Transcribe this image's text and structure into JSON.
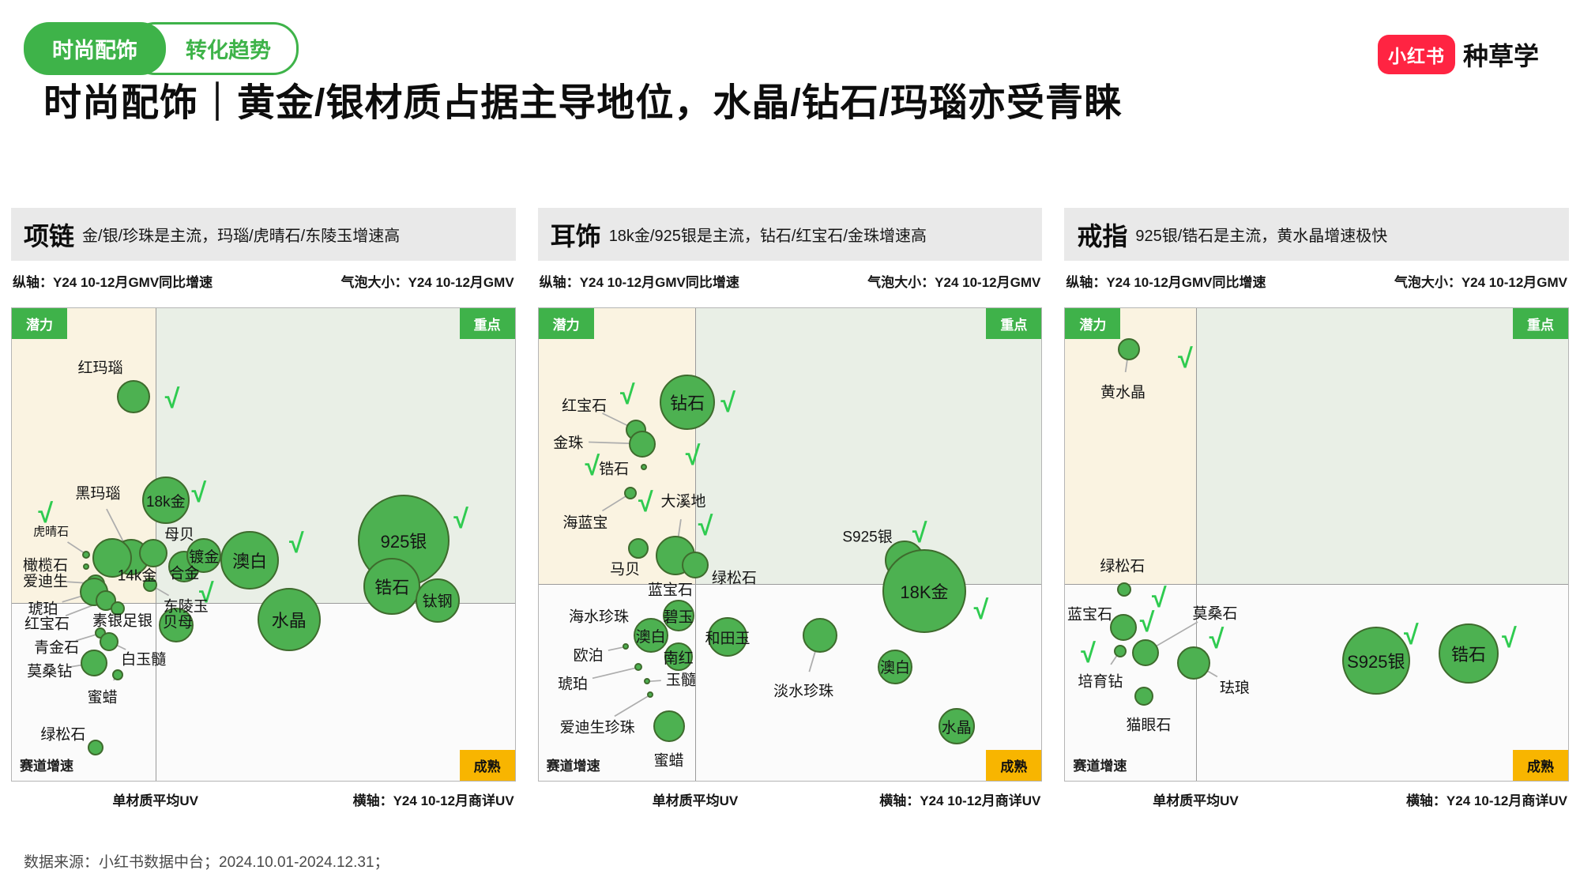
{
  "header": {
    "tag_primary": "时尚配饰",
    "tag_secondary": "转化趋势",
    "logo_badge": "小红书",
    "logo_text": "种草学",
    "title": "时尚配饰｜黄金/银材质占据主导地位，水晶/钻石/玛瑙亦受青睐"
  },
  "footer": {
    "source": "数据来源：小红书数据中台；2024.10.01-2024.12.31；"
  },
  "shared": {
    "y_axis_note": "纵轴：Y24 10-12月GMV同比增速",
    "bubble_note": "气泡大小：Y24 10-12月GMV",
    "x_axis_left": "单材质平均UV",
    "x_axis_right": "横轴：Y24 10-12月商详UV",
    "quadrant_labels": {
      "top_left": "潜力",
      "top_right": "重点",
      "bottom_right": "成熟",
      "bottom_left": "赛道增速"
    },
    "check_glyph": "√",
    "colors": {
      "bubble_fill": "#4DB151",
      "bubble_stroke": "#3E6B2D",
      "check_green": "#2FCB50",
      "quadrant_beige": "#FAF3E1",
      "quadrant_green": "#E9EFE6",
      "badge_green": "#3FB24A",
      "badge_yellow": "#F8B500",
      "brand_red": "#FF2442",
      "pill_green": "#3EB349"
    }
  },
  "chart_data": [
    {
      "type": "bubble",
      "title": "项链",
      "subtitle": "金/银/珍珠是主流，玛瑙/虎晴石/东陵玉增速高",
      "ylabel": "Y24 10-12月GMV同比增速",
      "xlabel": "Y24 10-12月商详UV",
      "size_label": "Y24 10-12月GMV",
      "divider_x": 28.6,
      "divider_y": 62.3,
      "bubbles": [
        {
          "name": "红玛瑙",
          "x": 24.2,
          "y": 18.7,
          "r": 21,
          "label": {
            "x": 17.6,
            "y": 12.4
          },
          "leader": false
        },
        {
          "name": "18k金",
          "x": 30.6,
          "y": 40.7,
          "r": 30,
          "inside": true
        },
        {
          "name": "黑玛瑙",
          "x": 23.7,
          "y": 52.6,
          "r": 23,
          "label": {
            "x": 17.1,
            "y": 38.9
          },
          "leader": true
        },
        {
          "name": "虎晴石",
          "x": 14.8,
          "y": 52.1,
          "r": 5,
          "label": {
            "x": 7.8,
            "y": 47.2
          },
          "leader": true,
          "small": true
        },
        {
          "name": "母贝",
          "x": 28.1,
          "y": 51.8,
          "r": 18,
          "label": {
            "x": 33.3,
            "y": 47.6
          },
          "leader": false
        },
        {
          "name": "14k金",
          "x": 20.0,
          "y": 52.8,
          "r": 25,
          "label": {
            "x": 24.9,
            "y": 56.3
          },
          "leader": false
        },
        {
          "name": "合金",
          "x": 34.3,
          "y": 54.6,
          "r": 20,
          "label": {
            "x": 34.3,
            "y": 55.8
          },
          "leader": false
        },
        {
          "name": "镀金",
          "x": 38.2,
          "y": 52.4,
          "r": 22,
          "inside": true
        },
        {
          "name": "澳白",
          "x": 47.3,
          "y": 53.4,
          "r": 37,
          "inside": true
        },
        {
          "name": "橄榄石",
          "x": 14.8,
          "y": 54.6,
          "r": 4,
          "label": {
            "x": 6.7,
            "y": 54.1
          },
          "leader": false
        },
        {
          "name": "爱迪生",
          "x": 16.7,
          "y": 58.3,
          "r": 12,
          "label": {
            "x": 6.7,
            "y": 57.6
          },
          "leader": true
        },
        {
          "name": "琥珀",
          "x": 16.4,
          "y": 60.1,
          "r": 18,
          "label": {
            "x": 6.2,
            "y": 63.4
          },
          "leader": true
        },
        {
          "name": "红宝石",
          "x": 18.7,
          "y": 61.8,
          "r": 13,
          "label": {
            "x": 7.0,
            "y": 66.6
          },
          "leader": true
        },
        {
          "name": "素银足银",
          "x": 21.1,
          "y": 63.5,
          "r": 9,
          "label": {
            "x": 22.0,
            "y": 65.9
          },
          "leader": true
        },
        {
          "name": "东陵玉",
          "x": 27.5,
          "y": 58.5,
          "r": 9,
          "label": {
            "x": 34.6,
            "y": 62.9
          },
          "leader": true
        },
        {
          "name": "贝母",
          "x": 32.7,
          "y": 67.1,
          "r": 22,
          "label": {
            "x": 33.0,
            "y": 66.3
          },
          "leader": false
        },
        {
          "name": "青金石",
          "x": 17.6,
          "y": 68.8,
          "r": 7,
          "label": {
            "x": 8.9,
            "y": 71.6
          },
          "leader": true
        },
        {
          "name": "白玉髓",
          "x": 19.3,
          "y": 70.5,
          "r": 12,
          "label": {
            "x": 26.2,
            "y": 74.1
          },
          "leader": true
        },
        {
          "name": "莫桑钻",
          "x": 16.4,
          "y": 75.1,
          "r": 17,
          "label": {
            "x": 7.5,
            "y": 76.6
          },
          "leader": true
        },
        {
          "name": "蜜蜡",
          "x": 21.0,
          "y": 77.6,
          "r": 7,
          "label": {
            "x": 18.0,
            "y": 82.1
          },
          "leader": true
        },
        {
          "name": "绿松石",
          "x": 16.7,
          "y": 93.0,
          "r": 10,
          "label": {
            "x": 10.2,
            "y": 90.0
          },
          "leader": false
        },
        {
          "name": "925银",
          "x": 77.9,
          "y": 49.1,
          "r": 58,
          "inside": true
        },
        {
          "name": "锆石",
          "x": 75.6,
          "y": 58.9,
          "r": 36,
          "inside": true
        },
        {
          "name": "钛钢",
          "x": 84.6,
          "y": 61.8,
          "r": 28,
          "inside": true
        },
        {
          "name": "水晶",
          "x": 55.1,
          "y": 65.9,
          "r": 40,
          "inside": true
        }
      ],
      "checks": [
        {
          "x": 31.9,
          "y": 19.2
        },
        {
          "x": 37.2,
          "y": 39.1
        },
        {
          "x": 6.7,
          "y": 43.4
        },
        {
          "x": 56.6,
          "y": 49.9
        },
        {
          "x": 89.3,
          "y": 44.6
        },
        {
          "x": 38.7,
          "y": 60.4
        }
      ]
    },
    {
      "type": "bubble",
      "title": "耳饰",
      "subtitle": "18k金/925银是主流，钻石/红宝石/金珠增速高",
      "ylabel": "Y24 10-12月GMV同比增速",
      "xlabel": "Y24 10-12月商详UV",
      "size_label": "Y24 10-12月GMV",
      "divider_x": 31.2,
      "divider_y": 58.3,
      "bubbles": [
        {
          "name": "红宝石",
          "x": 19.3,
          "y": 25.7,
          "r": 13,
          "label": {
            "x": 9.1,
            "y": 20.4
          },
          "leader": true
        },
        {
          "name": "钻石",
          "x": 29.6,
          "y": 19.9,
          "r": 35,
          "inside": true
        },
        {
          "name": "金珠",
          "x": 20.7,
          "y": 28.7,
          "r": 17,
          "label": {
            "x": 5.9,
            "y": 28.2
          },
          "leader": true
        },
        {
          "name": "锆石",
          "x": 21.0,
          "y": 33.6,
          "r": 4,
          "label": {
            "x": 15.0,
            "y": 33.7
          },
          "leader": false
        },
        {
          "name": "大溪地",
          "x": 27.2,
          "y": 52.4,
          "r": 25,
          "label": {
            "x": 28.8,
            "y": 40.7
          },
          "leader": true
        },
        {
          "name": "海蓝宝",
          "x": 18.2,
          "y": 39.2,
          "r": 8,
          "label": {
            "x": 9.3,
            "y": 45.1
          },
          "leader": true
        },
        {
          "name": "马贝",
          "x": 19.8,
          "y": 50.9,
          "r": 13,
          "label": {
            "x": 17.2,
            "y": 55.1
          },
          "leader": false
        },
        {
          "name": "蓝宝石",
          "x": 31.2,
          "y": 54.3,
          "r": 17,
          "label": {
            "x": 26.2,
            "y": 59.3
          },
          "leader": false
        },
        {
          "name": "绿松石",
          "x": 0,
          "y": 0,
          "r": 0,
          "label": {
            "x": 38.9,
            "y": 56.8
          },
          "leader": false
        },
        {
          "name": "S925银",
          "x": 72.7,
          "y": 53.3,
          "r": 25,
          "label": {
            "x": 65.4,
            "y": 48.2
          },
          "leader": false
        },
        {
          "name": "18K金",
          "x": 76.7,
          "y": 59.9,
          "r": 53,
          "inside": true
        },
        {
          "name": "海水珍珠",
          "x": 0,
          "y": 0,
          "r": 0,
          "label": {
            "x": 12.0,
            "y": 65.1
          },
          "leader": false
        },
        {
          "name": "碧玉",
          "x": 27.8,
          "y": 65.1,
          "r": 20,
          "inside": true
        },
        {
          "name": "澳白",
          "x": 22.3,
          "y": 69.3,
          "r": 22,
          "inside": true
        },
        {
          "name": "和田玉",
          "x": 37.6,
          "y": 69.6,
          "r": 25,
          "inside": true
        },
        {
          "name": "欧泊",
          "x": 17.4,
          "y": 71.6,
          "r": 4,
          "label": {
            "x": 9.9,
            "y": 73.3
          },
          "leader": true
        },
        {
          "name": "南红",
          "x": 27.8,
          "y": 73.8,
          "r": 18,
          "inside": true
        },
        {
          "name": "琥珀",
          "x": 19.8,
          "y": 76.0,
          "r": 5,
          "label": {
            "x": 6.8,
            "y": 79.3
          },
          "leader": true
        },
        {
          "name": "玉髓",
          "x": 21.5,
          "y": 79.0,
          "r": 4,
          "label": {
            "x": 28.3,
            "y": 78.5
          },
          "leader": true
        },
        {
          "name": "爱迪生珍珠",
          "x": 22.2,
          "y": 81.8,
          "r": 4,
          "label": {
            "x": 11.7,
            "y": 88.5
          },
          "leader": true
        },
        {
          "name": "蜜蜡",
          "x": 25.9,
          "y": 88.5,
          "r": 20,
          "label": {
            "x": 25.9,
            "y": 95.5
          },
          "leader": true
        },
        {
          "name": "淡水珍珠",
          "x": 55.9,
          "y": 69.3,
          "r": 22,
          "label": {
            "x": 52.7,
            "y": 80.8
          },
          "leader": true
        },
        {
          "name": "澳白",
          "x": 70.9,
          "y": 75.9,
          "r": 22,
          "inside": true
        },
        {
          "name": "水晶",
          "x": 83.1,
          "y": 88.5,
          "r": 23,
          "inside": true
        }
      ],
      "checks": [
        {
          "x": 17.7,
          "y": 18.4
        },
        {
          "x": 37.7,
          "y": 20.0
        },
        {
          "x": 10.7,
          "y": 33.4
        },
        {
          "x": 30.7,
          "y": 31.2
        },
        {
          "x": 21.3,
          "y": 41.2
        },
        {
          "x": 33.2,
          "y": 46.2
        },
        {
          "x": 75.8,
          "y": 47.6
        },
        {
          "x": 88.0,
          "y": 63.8
        }
      ]
    },
    {
      "type": "bubble",
      "title": "戒指",
      "subtitle": "925银/锆石是主流，黄水晶增速极快",
      "ylabel": "Y24 10-12月GMV同比增速",
      "xlabel": "Y24 10-12月商详UV",
      "size_label": "Y24 10-12月GMV",
      "divider_x": 26.0,
      "divider_y": 58.4,
      "bubbles": [
        {
          "name": "黄水晶",
          "x": 12.7,
          "y": 8.7,
          "r": 14,
          "label": {
            "x": 11.5,
            "y": 17.5
          },
          "leader": true
        },
        {
          "name": "绿松石",
          "x": 11.7,
          "y": 59.6,
          "r": 9,
          "label": {
            "x": 11.4,
            "y": 54.3
          },
          "leader": false
        },
        {
          "name": "蓝宝石",
          "x": 11.5,
          "y": 67.6,
          "r": 17,
          "label": {
            "x": 4.9,
            "y": 64.6
          },
          "leader": false
        },
        {
          "name": "莫桑石",
          "x": 15.9,
          "y": 72.9,
          "r": 17,
          "label": {
            "x": 29.8,
            "y": 64.3
          },
          "leader": true
        },
        {
          "name": "培育钻",
          "x": 10.9,
          "y": 72.6,
          "r": 8,
          "label": {
            "x": 7.0,
            "y": 78.8
          },
          "leader": true
        },
        {
          "name": "珐琅",
          "x": 25.5,
          "y": 75.0,
          "r": 21,
          "label": {
            "x": 33.7,
            "y": 80.1
          },
          "leader": true
        },
        {
          "name": "猫眼石",
          "x": 15.6,
          "y": 82.1,
          "r": 12,
          "label": {
            "x": 16.6,
            "y": 88.0
          },
          "leader": true
        },
        {
          "name": "S925银",
          "x": 61.8,
          "y": 74.6,
          "r": 43,
          "inside": true
        },
        {
          "name": "锆石",
          "x": 80.2,
          "y": 73.0,
          "r": 38,
          "inside": true
        }
      ],
      "checks": [
        {
          "x": 23.9,
          "y": 10.7
        },
        {
          "x": 18.7,
          "y": 61.3
        },
        {
          "x": 16.3,
          "y": 66.5
        },
        {
          "x": 30.1,
          "y": 70.1
        },
        {
          "x": 4.6,
          "y": 73.0
        },
        {
          "x": 68.8,
          "y": 69.3
        },
        {
          "x": 88.3,
          "y": 69.9
        }
      ]
    }
  ]
}
